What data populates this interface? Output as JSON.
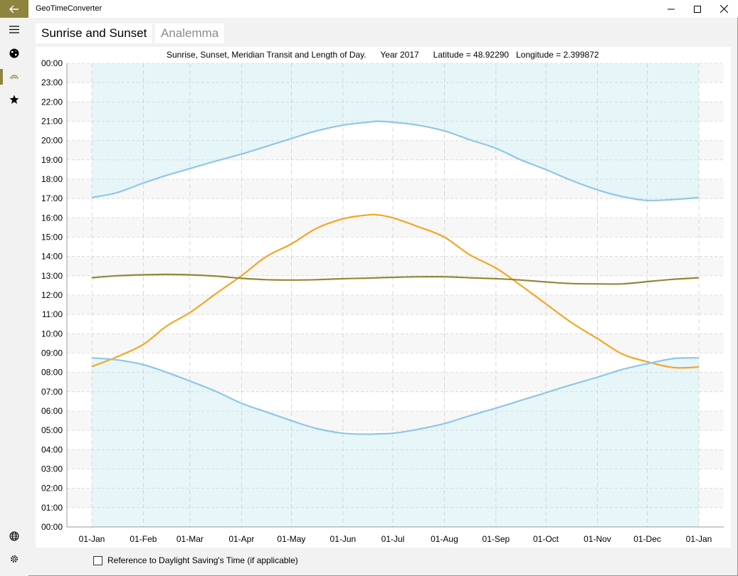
{
  "app": {
    "title": "GeoTimeConverter"
  },
  "titlebar": {
    "back_icon": "back-arrow-icon"
  },
  "nav": {
    "items": [
      "menu-icon",
      "globe-icon",
      "sun-icon",
      "star-icon",
      "language-icon",
      "gear-icon"
    ]
  },
  "tabs": [
    {
      "label": "Sunrise and Sunset",
      "active": true
    },
    {
      "label": "Analemma",
      "active": false
    }
  ],
  "chart_data": {
    "type": "line",
    "title": "Sunrise, Sunset, Meridian Transit and Length of Day.      Year 2017      Latitude = 48.92290   Longitude = 2.399872",
    "xlabel": "",
    "ylabel": "",
    "x_ticks": [
      "01-Jan",
      "01-Feb",
      "01-Mar",
      "01-Apr",
      "01-May",
      "01-Jun",
      "01-Jul",
      "01-Aug",
      "01-Sep",
      "01-Oct",
      "01-Nov",
      "01-Dec",
      "01-Jan"
    ],
    "y_ticks": [
      "00:00",
      "01:00",
      "02:00",
      "03:00",
      "04:00",
      "05:00",
      "06:00",
      "07:00",
      "08:00",
      "09:00",
      "10:00",
      "11:00",
      "12:00",
      "13:00",
      "14:00",
      "15:00",
      "16:00",
      "17:00",
      "18:00",
      "19:00",
      "20:00",
      "21:00",
      "22:00",
      "23:00",
      "00:00"
    ],
    "ylim": [
      0,
      24
    ],
    "grid": true,
    "night_fill": "#e3f4f8",
    "x_days": [
      0,
      15,
      31,
      45,
      59,
      75,
      90,
      105,
      120,
      135,
      151,
      166,
      172,
      181,
      196,
      212,
      227,
      243,
      258,
      273,
      288,
      304,
      319,
      334,
      350,
      365
    ],
    "series": [
      {
        "color": "#f5a623",
        "values": [
          8.3,
          8.8,
          9.45,
          10.4,
          11.1,
          12.1,
          13.0,
          14.0,
          14.65,
          15.45,
          15.95,
          16.15,
          16.15,
          16.0,
          15.55,
          15.0,
          14.1,
          13.4,
          12.5,
          11.55,
          10.6,
          9.75,
          8.95,
          8.55,
          8.25,
          8.28
        ]
      },
      {
        "color": "#8fc7e6",
        "values": [
          17.05,
          17.3,
          17.8,
          18.2,
          18.55,
          18.95,
          19.3,
          19.7,
          20.1,
          20.5,
          20.8,
          20.95,
          21.0,
          20.95,
          20.8,
          20.5,
          20.05,
          19.6,
          19.0,
          18.5,
          17.95,
          17.45,
          17.1,
          16.9,
          16.95,
          17.05
        ]
      },
      {
        "color": "#8fc7e6",
        "values": [
          8.75,
          8.65,
          8.4,
          8.0,
          7.55,
          7.0,
          6.4,
          5.95,
          5.5,
          5.1,
          4.85,
          4.8,
          4.82,
          4.85,
          5.05,
          5.35,
          5.75,
          6.15,
          6.55,
          6.95,
          7.35,
          7.75,
          8.15,
          8.45,
          8.72,
          8.75
        ]
      },
      {
        "color": "#8f8a35",
        "values": [
          12.9,
          13.0,
          13.05,
          13.07,
          13.05,
          12.98,
          12.87,
          12.8,
          12.78,
          12.8,
          12.85,
          12.88,
          12.9,
          12.92,
          12.95,
          12.95,
          12.9,
          12.85,
          12.78,
          12.68,
          12.6,
          12.58,
          12.58,
          12.7,
          12.82,
          12.9
        ]
      }
    ]
  },
  "footer": {
    "checkbox_label": "Reference to Daylight Saving's Time (if applicable)",
    "checked": false
  }
}
